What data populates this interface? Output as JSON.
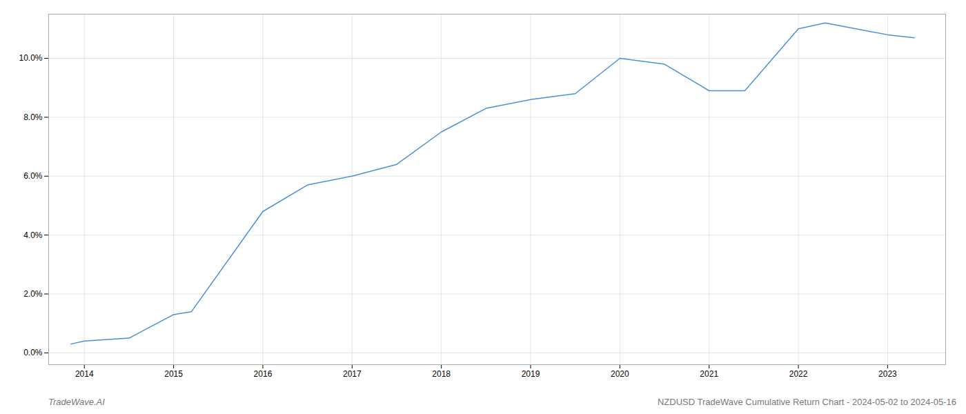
{
  "chart_data": {
    "type": "line",
    "x": [
      2013.85,
      2014.0,
      2014.5,
      2015.0,
      2015.2,
      2016.0,
      2016.5,
      2017.0,
      2017.5,
      2018.0,
      2018.5,
      2019.0,
      2019.5,
      2020.0,
      2020.5,
      2021.0,
      2021.4,
      2022.0,
      2022.3,
      2023.0,
      2023.3
    ],
    "values": [
      0.003,
      0.004,
      0.005,
      0.013,
      0.014,
      0.048,
      0.057,
      0.06,
      0.064,
      0.075,
      0.083,
      0.086,
      0.088,
      0.1,
      0.098,
      0.089,
      0.089,
      0.11,
      0.112,
      0.108,
      0.107
    ],
    "color": "#4a90d9",
    "xlim": [
      2013.6,
      2023.65
    ],
    "ylim": [
      -0.004,
      0.115
    ],
    "xticks": [
      2014,
      2015,
      2016,
      2017,
      2018,
      2019,
      2020,
      2021,
      2022,
      2023
    ],
    "yticks": [
      {
        "value": 0.0,
        "label": "0.0%"
      },
      {
        "value": 0.02,
        "label": "2.0%"
      },
      {
        "value": 0.04,
        "label": "4.0%"
      },
      {
        "value": 0.06,
        "label": "6.0%"
      },
      {
        "value": 0.08,
        "label": "8.0%"
      },
      {
        "value": 0.1,
        "label": "10.0%"
      }
    ],
    "grid": true,
    "annotations": [
      "TradeWave.AI",
      "NZDUSD TradeWave Cumulative Return Chart - 2024-05-02 to 2024-05-16"
    ]
  }
}
